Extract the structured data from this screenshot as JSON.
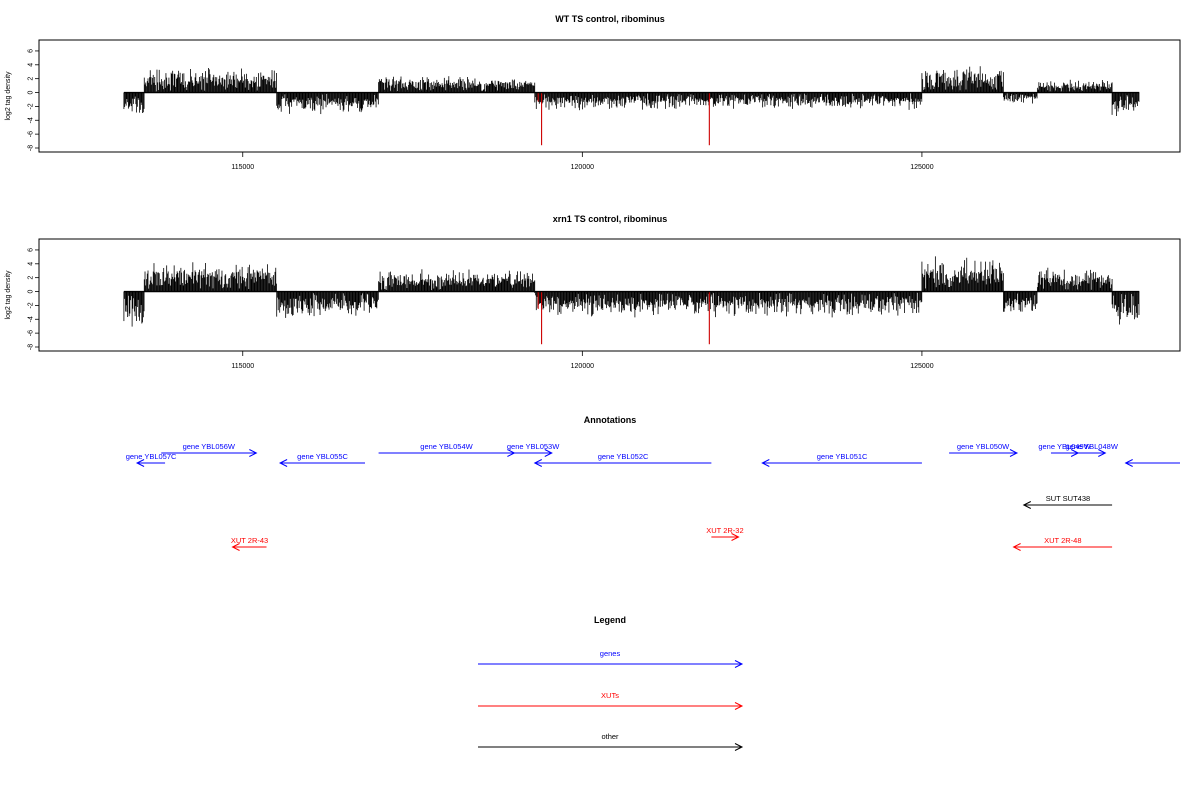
{
  "chart_data": [
    {
      "type": "bar",
      "title": "WT TS control, ribominus",
      "ylabel": "log2 tag density",
      "xlabel": "",
      "xlim": [
        112000,
        128800
      ],
      "ylim": [
        -8,
        7
      ],
      "x_ticks": [
        115000,
        120000,
        125000
      ],
      "x_tick_labels": [
        "115000",
        "120000",
        "125000"
      ],
      "y_ticks": [
        -8,
        -6,
        -4,
        -2,
        0,
        2,
        4,
        6
      ],
      "y_tick_labels": [
        "-8",
        "-6",
        "-4",
        "-2",
        "0",
        "2",
        "4",
        "6"
      ],
      "segments": [
        {
          "start": 113250,
          "end": 113550,
          "sign": -1,
          "base": 1.8,
          "amp": 2.2,
          "color": "#000000"
        },
        {
          "start": 113550,
          "end": 115500,
          "sign": 1,
          "base": 1.8,
          "amp": 1.8,
          "color": "#000000"
        },
        {
          "start": 115500,
          "end": 117000,
          "sign": -1,
          "base": 1.6,
          "amp": 1.5,
          "color": "#000000"
        },
        {
          "start": 117000,
          "end": 119300,
          "sign": 1,
          "base": 1.3,
          "amp": 1.2,
          "color": "#000000"
        },
        {
          "start": 119300,
          "end": 125000,
          "sign": -1,
          "base": 1.2,
          "amp": 1.4,
          "color": "#000000"
        },
        {
          "start": 125000,
          "end": 126200,
          "sign": 1,
          "base": 1.8,
          "amp": 2.0,
          "color": "#000000"
        },
        {
          "start": 126200,
          "end": 126700,
          "sign": -1,
          "base": 0.8,
          "amp": 0.9,
          "color": "#000000"
        },
        {
          "start": 126700,
          "end": 127800,
          "sign": 1,
          "base": 0.9,
          "amp": 1.0,
          "color": "#000000"
        },
        {
          "start": 127800,
          "end": 128200,
          "sign": -1,
          "base": 2.0,
          "amp": 1.6,
          "color": "#000000"
        }
      ],
      "highlights": [
        {
          "x": 119350,
          "y": -1.3,
          "color": "#cc0000"
        },
        {
          "x": 119400,
          "y": -7.6,
          "color": "#cc0000"
        },
        {
          "x": 121870,
          "y": -7.6,
          "color": "#cc0000"
        }
      ]
    },
    {
      "type": "bar",
      "title": "xrn1 TS control, ribominus",
      "ylabel": "log2 tag density",
      "xlabel": "",
      "xlim": [
        112000,
        128800
      ],
      "ylim": [
        -8,
        7
      ],
      "x_ticks": [
        115000,
        120000,
        125000
      ],
      "x_tick_labels": [
        "115000",
        "120000",
        "125000"
      ],
      "y_ticks": [
        -8,
        -6,
        -4,
        -2,
        0,
        2,
        4,
        6
      ],
      "y_tick_labels": [
        "-8",
        "-6",
        "-4",
        "-2",
        "0",
        "2",
        "4",
        "6"
      ],
      "segments": [
        {
          "start": 113250,
          "end": 113550,
          "sign": -1,
          "base": 2.8,
          "amp": 2.8,
          "color": "#000000"
        },
        {
          "start": 113550,
          "end": 115500,
          "sign": 1,
          "base": 2.4,
          "amp": 2.0,
          "color": "#000000"
        },
        {
          "start": 115500,
          "end": 117000,
          "sign": -1,
          "base": 2.2,
          "amp": 2.0,
          "color": "#000000"
        },
        {
          "start": 117000,
          "end": 119300,
          "sign": 1,
          "base": 1.6,
          "amp": 1.6,
          "color": "#000000"
        },
        {
          "start": 119300,
          "end": 125000,
          "sign": -1,
          "base": 1.8,
          "amp": 2.0,
          "color": "#000000"
        },
        {
          "start": 125000,
          "end": 126200,
          "sign": 1,
          "base": 2.5,
          "amp": 2.5,
          "color": "#000000"
        },
        {
          "start": 126200,
          "end": 126700,
          "sign": -1,
          "base": 1.8,
          "amp": 1.6,
          "color": "#000000"
        },
        {
          "start": 126700,
          "end": 127800,
          "sign": 1,
          "base": 1.8,
          "amp": 1.6,
          "color": "#000000"
        },
        {
          "start": 127800,
          "end": 128200,
          "sign": -1,
          "base": 2.6,
          "amp": 2.2,
          "color": "#000000"
        }
      ],
      "highlights": [
        {
          "x": 119350,
          "y": -2.5,
          "color": "#cc0000"
        },
        {
          "x": 119400,
          "y": -7.6,
          "color": "#cc0000"
        },
        {
          "x": 121870,
          "y": -7.6,
          "color": "#cc0000"
        }
      ]
    }
  ],
  "annotations": {
    "title": "Annotations",
    "items": [
      {
        "label": "gene YBL057C",
        "start": 113600,
        "end": 113700,
        "strand": "-",
        "row": 1,
        "color": "#0000ff"
      },
      {
        "label": "gene YBL056W",
        "start": 113800,
        "end": 115200,
        "strand": "+",
        "row": 0,
        "color": "#0000ff"
      },
      {
        "label": "gene YBL055C",
        "start": 115550,
        "end": 116800,
        "strand": "-",
        "row": 1,
        "color": "#0000ff"
      },
      {
        "label": "gene YBL054W",
        "start": 117000,
        "end": 119000,
        "strand": "+",
        "row": 0,
        "color": "#0000ff"
      },
      {
        "label": "gene YBL053W",
        "start": 119000,
        "end": 119550,
        "strand": "+",
        "row": 0,
        "color": "#0000ff"
      },
      {
        "label": "gene YBL052C",
        "start": 119300,
        "end": 121900,
        "strand": "-",
        "row": 1,
        "color": "#0000ff"
      },
      {
        "label": "gene YBL051C",
        "start": 122650,
        "end": 125000,
        "strand": "-",
        "row": 1,
        "color": "#0000ff"
      },
      {
        "label": "gene YBL050W",
        "start": 125400,
        "end": 126400,
        "strand": "+",
        "row": 0,
        "color": "#0000ff"
      },
      {
        "label": "gene YBL049W",
        "start": 126900,
        "end": 127300,
        "strand": "+",
        "row": 0,
        "color": "#0000ff"
      },
      {
        "label": "gene YBL048W",
        "start": 127300,
        "end": 127700,
        "strand": "+",
        "row": 0,
        "color": "#0000ff"
      },
      {
        "label": "",
        "start": 128000,
        "end": 128800,
        "strand": "-",
        "row": 1,
        "color": "#0000ff"
      },
      {
        "label": "SUT SUT438",
        "start": 126500,
        "end": 127800,
        "strand": "-",
        "row": 2,
        "color": "#000000"
      },
      {
        "label": "XUT 2R-43",
        "start": 114850,
        "end": 115350,
        "strand": "-",
        "row": 3,
        "color": "#ff0000"
      },
      {
        "label": "XUT 2R-32",
        "start": 121900,
        "end": 122300,
        "strand": "+",
        "row": 4,
        "color": "#ff0000"
      },
      {
        "label": "XUT 2R-48",
        "start": 126350,
        "end": 127800,
        "strand": "-",
        "row": 3,
        "color": "#ff0000"
      }
    ]
  },
  "legend": {
    "title": "Legend",
    "items": [
      {
        "label": "genes",
        "color": "#0000ff"
      },
      {
        "label": "XUTs",
        "color": "#ff0000"
      },
      {
        "label": "other",
        "color": "#000000"
      }
    ]
  }
}
